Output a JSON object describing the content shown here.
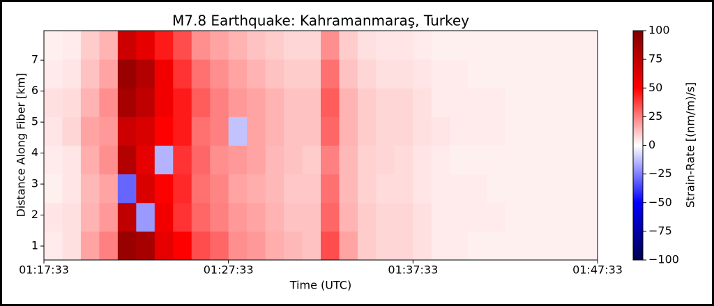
{
  "chart_data": {
    "type": "heatmap",
    "title": "M7.8 Earthquake: Kahramanmaraş, Turkey",
    "x_label": "Time (UTC)",
    "y_label": "Distance Along Fiber [km]",
    "colorbar_label": "Strain-Rate [(nm/m)/s]",
    "xticks": [
      "01:17:33",
      "01:27:33",
      "01:37:33",
      "01:47:33"
    ],
    "ylim": [
      0.55,
      7.95
    ],
    "yticks": [
      1,
      2,
      3,
      4,
      5,
      6,
      7
    ],
    "zlim": [
      -100,
      100
    ],
    "zticks": [
      {
        "value": -100,
        "label": "−100"
      },
      {
        "value": -75,
        "label": "−75"
      },
      {
        "value": -50,
        "label": "−50"
      },
      {
        "value": -25,
        "label": "−25"
      },
      0,
      25,
      50,
      75,
      100
    ],
    "colors": [
      "#00004c",
      "#0000ff",
      "#ffffff",
      "#ff0000",
      "#800000"
    ],
    "z": [
      [
        4,
        6,
        18,
        25,
        90,
        85,
        60,
        50,
        35,
        30,
        22,
        20,
        16,
        14,
        12,
        35,
        18,
        10,
        8,
        8,
        6,
        4,
        4,
        3,
        3,
        3,
        3,
        3,
        3,
        3
      ],
      [
        5,
        6,
        15,
        20,
        75,
        -20,
        55,
        40,
        30,
        25,
        20,
        18,
        15,
        12,
        12,
        30,
        15,
        10,
        8,
        8,
        6,
        4,
        4,
        4,
        4,
        3,
        3,
        3,
        3,
        3
      ],
      [
        3,
        5,
        14,
        18,
        -30,
        65,
        50,
        42,
        28,
        24,
        18,
        16,
        14,
        11,
        11,
        28,
        14,
        9,
        7,
        7,
        5,
        4,
        4,
        4,
        3,
        3,
        3,
        3,
        3,
        3
      ],
      [
        4,
        5,
        16,
        22,
        80,
        60,
        -15,
        40,
        30,
        22,
        20,
        18,
        14,
        12,
        10,
        25,
        14,
        9,
        8,
        7,
        5,
        4,
        3,
        3,
        3,
        3,
        3,
        3,
        3,
        3
      ],
      [
        5,
        8,
        18,
        20,
        70,
        65,
        50,
        45,
        28,
        25,
        -12,
        18,
        15,
        12,
        12,
        30,
        15,
        10,
        8,
        8,
        6,
        5,
        4,
        4,
        4,
        3,
        3,
        3,
        3,
        3
      ],
      [
        6,
        7,
        15,
        22,
        85,
        75,
        55,
        45,
        32,
        25,
        20,
        18,
        15,
        12,
        12,
        32,
        15,
        10,
        8,
        8,
        6,
        4,
        4,
        4,
        4,
        3,
        3,
        3,
        3,
        3
      ],
      [
        4,
        5,
        12,
        18,
        90,
        80,
        55,
        40,
        28,
        22,
        18,
        15,
        12,
        10,
        10,
        28,
        12,
        8,
        6,
        6,
        5,
        4,
        4,
        3,
        3,
        3,
        3,
        3,
        3,
        3
      ],
      [
        3,
        4,
        10,
        15,
        70,
        60,
        45,
        35,
        22,
        18,
        15,
        12,
        10,
        8,
        8,
        22,
        10,
        6,
        5,
        5,
        4,
        3,
        3,
        3,
        3,
        3,
        3,
        3,
        3,
        3
      ]
    ]
  }
}
